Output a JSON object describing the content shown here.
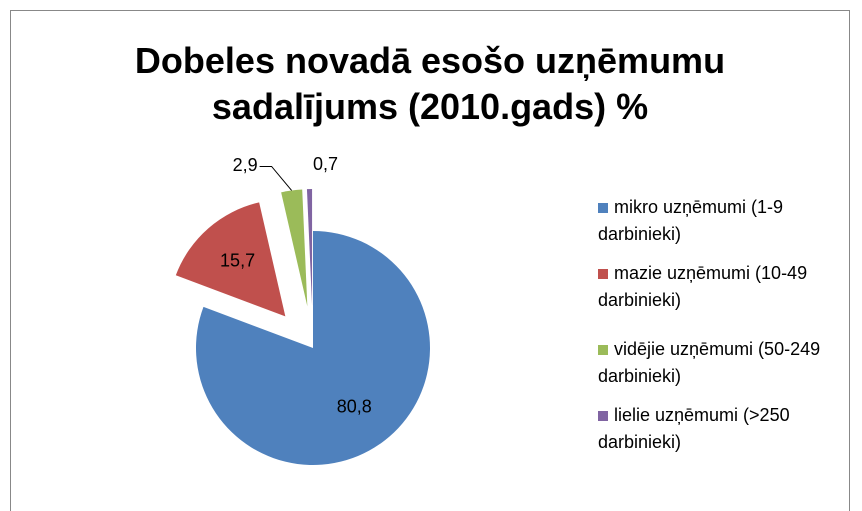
{
  "chart_data": {
    "type": "pie",
    "title": "Dobeles novadā esošo uzņēmumu sadalījums (2010.gads) %",
    "categories": [
      "mikro uzņēmumi (1-9 darbinieki)",
      "mazie uzņēmumi (10-49 darbinieki)",
      "vidējie uzņēmumi (50-249 darbinieki)",
      "lielie uzņēmumi (>250 darbinieki)"
    ],
    "values": [
      80.8,
      15.7,
      2.9,
      0.7
    ],
    "value_labels": [
      "80,8",
      "15,7",
      "2,9",
      "0,7"
    ],
    "colors": [
      "#4f81bd",
      "#c0504d",
      "#9bbb59",
      "#8064a2"
    ]
  }
}
